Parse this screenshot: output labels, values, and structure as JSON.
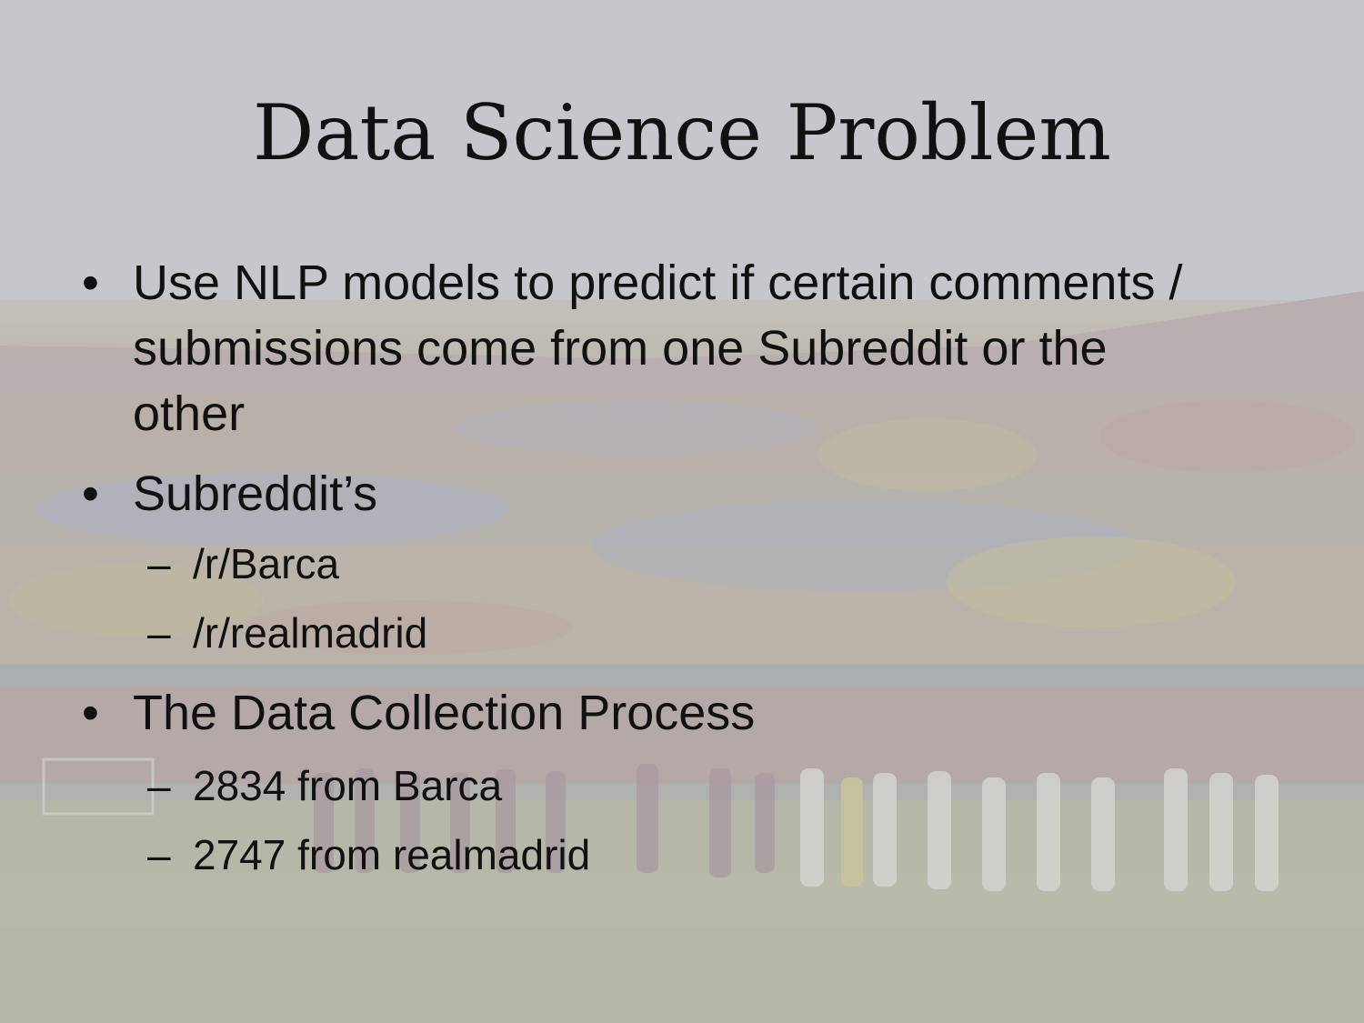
{
  "slide": {
    "title": "Data Science Problem",
    "bullets": [
      {
        "text": "Use NLP models to predict if certain comments / submissions come from one Subreddit or the other"
      },
      {
        "text": "Subreddit’s",
        "sub": [
          "/r/Barca",
          "/r/realmadrid"
        ]
      },
      {
        "text": "The Data Collection Process",
        "sub": [
          "2834 from Barca",
          "2747 from realmadrid"
        ]
      }
    ],
    "bullet_symbol": "•",
    "sub_bullet_symbol": "–"
  }
}
